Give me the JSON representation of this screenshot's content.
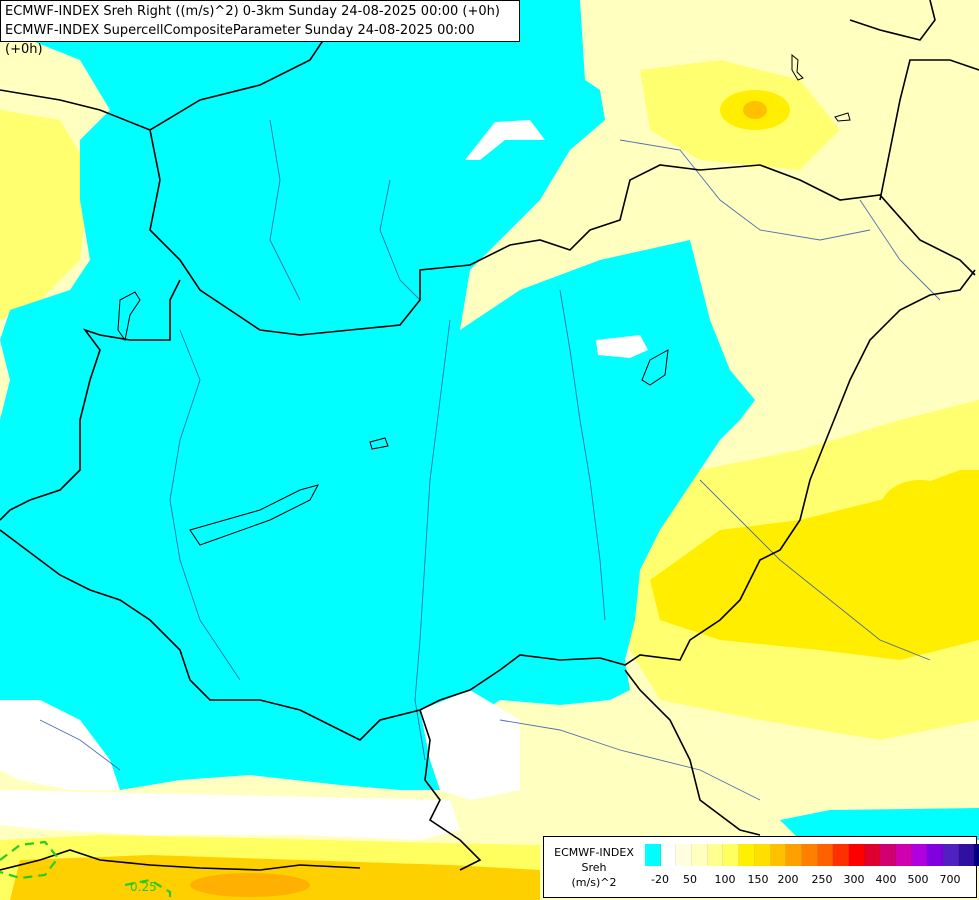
{
  "header": {
    "line1": "ECMWF-INDEX Sreh Right ((m/s)^2) 0-3km Sunday 24-08-2025 00:00 (+0h)",
    "line2": "ECMWF-INDEX SupercellCompositeParameter Sunday 24-08-2025 00:00 (+0h)"
  },
  "contour_label": "0.25",
  "legend": {
    "model": "ECMWF-INDEX",
    "variable": "Sreh",
    "unit": "(m/s)^2",
    "ticks": [
      "-20",
      "50",
      "100",
      "150",
      "200",
      "250",
      "300",
      "400",
      "500",
      "700"
    ],
    "colors": [
      "#00ffff",
      "#ffffff",
      "#ffffe0",
      "#ffffc0",
      "#ffff90",
      "#ffff60",
      "#ffef00",
      "#ffdf00",
      "#ffc000",
      "#ffa000",
      "#ff8000",
      "#ff6000",
      "#ff3000",
      "#ff0000",
      "#e00030",
      "#d00070",
      "#d000b0",
      "#b000e0",
      "#8000e0",
      "#5020c0",
      "#3010a0",
      "#000080"
    ]
  },
  "colors": {
    "cyan": "#00ffff",
    "pale_yellow": "#ffffc0",
    "yellow": "#ffff60",
    "orange": "#ffd000",
    "white": "#ffffff",
    "border": "#000000",
    "river": "#3355aa",
    "contour": "#22cc22"
  }
}
